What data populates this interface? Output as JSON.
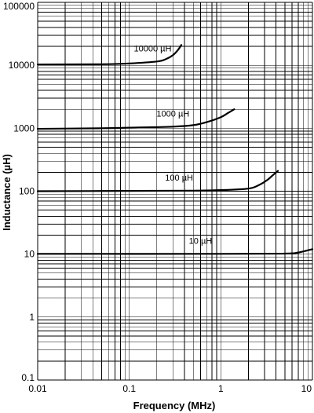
{
  "chart_data": {
    "type": "line",
    "title": "",
    "xlabel": "Frequency (MHz)",
    "ylabel": "Inductance (µH)",
    "x_scale": "log",
    "y_scale": "log",
    "xlim": [
      0.01,
      10
    ],
    "ylim": [
      0.1,
      100000
    ],
    "grid": true,
    "x_tick_labels": [
      "0.01",
      "0.1",
      "1",
      "10"
    ],
    "x_tick_values": [
      0.01,
      0.1,
      1,
      10
    ],
    "y_tick_labels": [
      "0.1",
      "1",
      "10",
      "100",
      "1000",
      "10000",
      "100000"
    ],
    "y_tick_values": [
      0.1,
      1,
      10,
      100,
      1000,
      10000,
      100000
    ],
    "series": [
      {
        "name": "10000 µH",
        "color": "#000000",
        "points": [
          [
            0.01,
            10300
          ],
          [
            0.05,
            10400
          ],
          [
            0.1,
            10700
          ],
          [
            0.2,
            11500
          ],
          [
            0.25,
            12500
          ],
          [
            0.3,
            14500
          ],
          [
            0.34,
            17500
          ],
          [
            0.37,
            21000
          ]
        ]
      },
      {
        "name": "1000 µH",
        "color": "#000000",
        "points": [
          [
            0.01,
            980
          ],
          [
            0.05,
            1000
          ],
          [
            0.1,
            1020
          ],
          [
            0.3,
            1060
          ],
          [
            0.5,
            1120
          ],
          [
            0.7,
            1250
          ],
          [
            1.0,
            1500
          ],
          [
            1.2,
            1750
          ],
          [
            1.4,
            2000
          ]
        ]
      },
      {
        "name": "100 µH",
        "color": "#000000",
        "points": [
          [
            0.01,
            100
          ],
          [
            0.1,
            101
          ],
          [
            0.5,
            102
          ],
          [
            1.0,
            104
          ],
          [
            2.0,
            110
          ],
          [
            2.6,
            125
          ],
          [
            3.2,
            150
          ],
          [
            3.7,
            180
          ],
          [
            4.2,
            210
          ]
        ]
      },
      {
        "name": "10 µH",
        "color": "#000000",
        "points": [
          [
            0.01,
            10.1
          ],
          [
            1.0,
            10.1
          ],
          [
            5.0,
            10.2
          ],
          [
            7.0,
            10.6
          ],
          [
            10.0,
            12.0
          ]
        ]
      }
    ]
  }
}
